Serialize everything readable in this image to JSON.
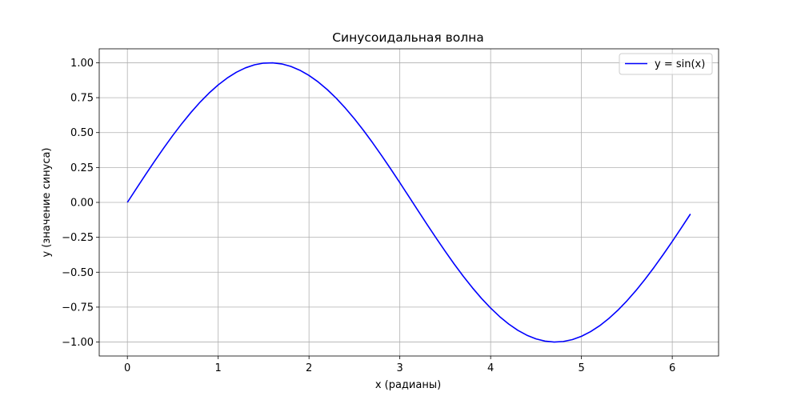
{
  "chart_data": {
    "type": "line",
    "title": "Синусоидальная волна",
    "xlabel": "x (радианы)",
    "ylabel": "y (значение синуса)",
    "xlim": [
      -0.31,
      6.51
    ],
    "ylim": [
      -1.1,
      1.1
    ],
    "xticks": [
      0,
      1,
      2,
      3,
      4,
      5,
      6
    ],
    "xtick_labels": [
      "0",
      "1",
      "2",
      "3",
      "4",
      "5",
      "6"
    ],
    "yticks": [
      1.0,
      0.75,
      0.5,
      0.25,
      0.0,
      -0.25,
      -0.5,
      -0.75,
      -1.0
    ],
    "ytick_labels": [
      "1.00",
      "0.75",
      "0.50",
      "0.25",
      "0.00",
      "−0.25",
      "−0.50",
      "−0.75",
      "−1.00"
    ],
    "grid": true,
    "legend_position": "top-right",
    "series": [
      {
        "name": "y = sin(x)",
        "color": "#0000ff",
        "x": [
          0.0,
          0.1,
          0.2,
          0.3,
          0.4,
          0.5,
          0.6,
          0.7,
          0.8,
          0.9,
          1.0,
          1.1,
          1.2,
          1.3,
          1.4,
          1.5,
          1.6,
          1.7,
          1.8,
          1.9,
          2.0,
          2.1,
          2.2,
          2.3,
          2.4,
          2.5,
          2.6,
          2.7,
          2.8,
          2.9,
          3.0,
          3.1,
          3.2,
          3.3,
          3.4,
          3.5,
          3.6,
          3.7,
          3.8,
          3.9,
          4.0,
          4.1,
          4.2,
          4.3,
          4.4,
          4.5,
          4.6,
          4.7,
          4.8,
          4.9,
          5.0,
          5.1,
          5.2,
          5.3,
          5.4,
          5.5,
          5.6,
          5.7,
          5.8,
          5.9,
          6.0,
          6.1,
          6.2
        ],
        "y": [
          0.0,
          0.0998,
          0.1987,
          0.2955,
          0.3894,
          0.4794,
          0.5646,
          0.6442,
          0.7174,
          0.7833,
          0.8415,
          0.8912,
          0.932,
          0.9636,
          0.9854,
          0.9975,
          0.9996,
          0.9917,
          0.9738,
          0.9463,
          0.9093,
          0.8632,
          0.8085,
          0.7457,
          0.6755,
          0.5985,
          0.5155,
          0.4274,
          0.335,
          0.2392,
          0.1411,
          0.0416,
          -0.0584,
          -0.1577,
          -0.2555,
          -0.3508,
          -0.4425,
          -0.5298,
          -0.6119,
          -0.6878,
          -0.7568,
          -0.8183,
          -0.8716,
          -0.9162,
          -0.9516,
          -0.9775,
          -0.9937,
          -0.9999,
          -0.9962,
          -0.9825,
          -0.9589,
          -0.9258,
          -0.8835,
          -0.8323,
          -0.7728,
          -0.7055,
          -0.6313,
          -0.5507,
          -0.4646,
          -0.3739,
          -0.2794,
          -0.1822,
          -0.0831
        ]
      }
    ]
  }
}
